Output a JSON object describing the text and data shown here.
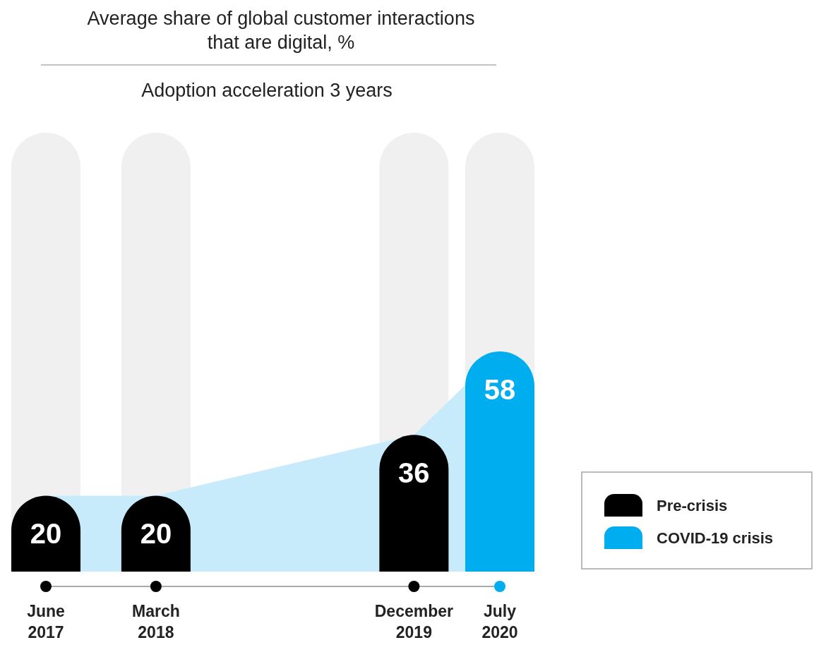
{
  "chart_data": {
    "type": "bar",
    "title": "Average share of global customer interactions that are digital, %",
    "subtitle": "Adoption acceleration 3 years",
    "x": [
      "2017-06",
      "2018-03",
      "2019-12",
      "2020-07"
    ],
    "xlim": [
      "2017-06",
      "2020-07"
    ],
    "xticks": [
      {
        "value": "2017-06",
        "label": "June 2017"
      },
      {
        "value": "2018-03",
        "label": "March 2018"
      },
      {
        "value": "2019-12",
        "label": "December 2019"
      },
      {
        "value": "2020-07",
        "label": "July 2020"
      }
    ],
    "series": [
      {
        "type": "area",
        "color": "#c8ebfb",
        "values": [
          20,
          20,
          36,
          58
        ]
      },
      {
        "name": "Pre-crisis",
        "color": "#000000",
        "values": [
          20,
          20,
          36,
          null
        ],
        "value_labels": [
          "20",
          "20",
          "36",
          null
        ]
      },
      {
        "name": "COVID-19 crisis",
        "color": "#00aeef",
        "values": [
          null,
          null,
          null,
          58
        ],
        "value_labels": [
          null,
          null,
          null,
          "58"
        ]
      }
    ],
    "legend": "right"
  }
}
